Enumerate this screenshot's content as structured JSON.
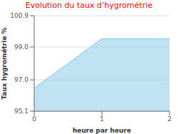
{
  "chart_data": {
    "type": "area",
    "title": "Evolution du taux d’hygrométrie",
    "xlabel": "heure par heure",
    "ylabel": "Taux hygrométrie %",
    "x": [
      0,
      1,
      2
    ],
    "values": [
      96.5,
      99.5,
      99.5
    ],
    "xlim": [
      0,
      2
    ],
    "ylim": [
      95.1,
      100.9
    ],
    "xticks": [
      0,
      1,
      2
    ],
    "yticks": [
      95.1,
      {
        "value": 97.0,
        "label": "97.0"
      },
      {
        "value": 99.0,
        "label": "99.0"
      },
      100.9
    ],
    "color": "#7fc8e8",
    "grid": true
  }
}
